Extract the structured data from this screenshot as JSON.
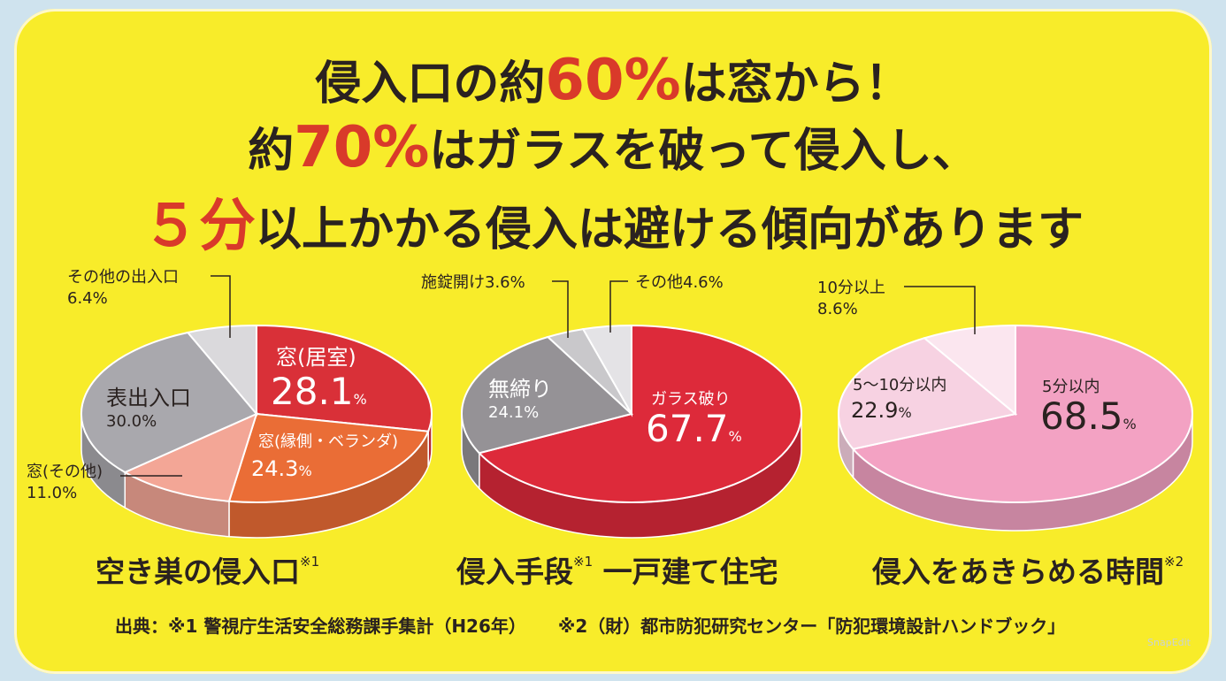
{
  "headline": {
    "line1_pre": "侵入口の約",
    "line1_num": "60%",
    "line1_post": "は窓から！",
    "line2_pre": "約",
    "line2_num": "70%",
    "line2_post": "はガラスを破って侵入し、",
    "line3_num": "５分",
    "line3_post": "以上かかる侵入は避ける傾向があります"
  },
  "colors": {
    "background": "#f8ec2a",
    "accent": "#d93a2a",
    "text": "#2a2220"
  },
  "chart_data": [
    {
      "type": "pie",
      "title": "空き巣の侵入口",
      "note": "※1",
      "slices": [
        {
          "label": "窓(居室)",
          "value": 28.1,
          "color": "#d93038"
        },
        {
          "label": "窓(縁側・ベランダ)",
          "value": 24.3,
          "color": "#ea6d36"
        },
        {
          "label": "窓(その他)",
          "value": 11.0,
          "color": "#f3a696"
        },
        {
          "label": "表出入口",
          "value": 30.0,
          "color": "#a9a8ad"
        },
        {
          "label": "その他の出入口",
          "value": 6.4,
          "color": "#dad9dc"
        }
      ]
    },
    {
      "type": "pie",
      "title": "侵入手段",
      "note": "※1",
      "subtitle": "一戸建て住宅",
      "slices": [
        {
          "label": "ガラス破り",
          "value": 67.7,
          "color": "#dd2a3a"
        },
        {
          "label": "無締り",
          "value": 24.1,
          "color": "#959296"
        },
        {
          "label": "施錠開け",
          "value": 3.6,
          "color": "#c9c8cb"
        },
        {
          "label": "その他",
          "value": 4.6,
          "color": "#e4e3e6"
        }
      ]
    },
    {
      "type": "pie",
      "title": "侵入をあきらめる時間",
      "note": "※2",
      "slices": [
        {
          "label": "5分以内",
          "value": 68.5,
          "color": "#f3a2c3"
        },
        {
          "label": "5〜10分以内",
          "value": 22.9,
          "color": "#f7d2e2"
        },
        {
          "label": "10分以上",
          "value": 8.6,
          "color": "#fbe6ef"
        }
      ]
    }
  ],
  "labels": {
    "pie1": {
      "s0_name": "窓(居室)",
      "s0_val": "28.1",
      "s1_name": "窓(縁側・ベランダ)",
      "s1_val": "24.3",
      "s2_name": "窓(その他)",
      "s2_val": "11.0%",
      "s3_name": "表出入口",
      "s3_val": "30.0%",
      "s4_name": "その他の出入口",
      "s4_val": "6.4%"
    },
    "pie2": {
      "s0_name": "ガラス破り",
      "s0_val": "67.7",
      "s1_name": "無締り",
      "s1_val": "24.1%",
      "s2_name": "施錠開け3.6%",
      "s3_name": "その他4.6%"
    },
    "pie3": {
      "s0_name": "5分以内",
      "s0_val": "68.5",
      "s1_name": "5〜10分以内",
      "s1_val": "22.9",
      "s2_name": "10分以上",
      "s2_val": "8.6%"
    },
    "percent_sign": "%"
  },
  "captions": {
    "c1": "空き巣の侵入口",
    "c1_note": "※1",
    "c2": "侵入手段",
    "c2_note": "※1",
    "c2_sub": "一戸建て住宅",
    "c3": "侵入をあきらめる時間",
    "c3_note": "※2"
  },
  "source": {
    "s1": "出典：※1 警視庁生活安全総務課手集計（H26年）",
    "s2": "※2（財）都市防犯研究センター「防犯環境設計ハンドブック」"
  },
  "watermark": "SnapEdit"
}
